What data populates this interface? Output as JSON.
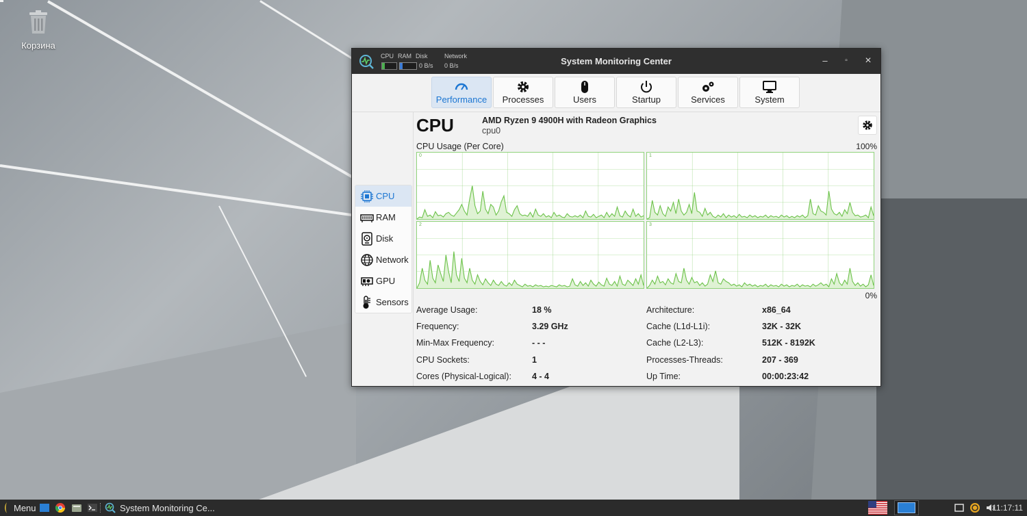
{
  "desktop": {
    "trash_label": "Корзина"
  },
  "window": {
    "title": "System Monitoring Center",
    "mini": {
      "cpu": "CPU",
      "ram": "RAM",
      "disk": "Disk",
      "network": "Network",
      "disk_speed": "0 B/s",
      "net_speed": "0 B/s"
    },
    "controls": {
      "minimize": "–",
      "maximize": "▫",
      "close": "×"
    }
  },
  "tabs": [
    {
      "label": "Performance",
      "icon": "gauge-icon"
    },
    {
      "label": "Processes",
      "icon": "gear-icon"
    },
    {
      "label": "Users",
      "icon": "mouse-icon"
    },
    {
      "label": "Startup",
      "icon": "power-icon"
    },
    {
      "label": "Services",
      "icon": "gears-icon"
    },
    {
      "label": "System",
      "icon": "monitor-icon"
    }
  ],
  "sidebar": [
    {
      "label": "CPU",
      "icon": "chip-icon"
    },
    {
      "label": "RAM",
      "icon": "ram-icon"
    },
    {
      "label": "Disk",
      "icon": "disk-icon"
    },
    {
      "label": "Network",
      "icon": "globe-icon"
    },
    {
      "label": "GPU",
      "icon": "gpu-icon"
    },
    {
      "label": "Sensors",
      "icon": "thermometer-icon"
    }
  ],
  "cpu": {
    "heading": "CPU",
    "model": "AMD Ryzen 9 4900H with Radeon Graphics",
    "id": "cpu0",
    "usage_label": "CPU Usage (Per Core)",
    "max_label": "100%",
    "min_label": "0%",
    "cores": [
      {
        "label": "0",
        "values": [
          0,
          3,
          2,
          14,
          4,
          6,
          2,
          11,
          5,
          6,
          3,
          8,
          10,
          6,
          4,
          9,
          14,
          22,
          12,
          6,
          30,
          50,
          20,
          8,
          12,
          42,
          15,
          8,
          22,
          18,
          6,
          12,
          26,
          35,
          10,
          8,
          4,
          14,
          20,
          8,
          5,
          6,
          4,
          10,
          3,
          15,
          6,
          4,
          8,
          3,
          5,
          2,
          10,
          4,
          6,
          3,
          2,
          8,
          4,
          3,
          5,
          3,
          6,
          2,
          12,
          4,
          3,
          7,
          2,
          4,
          6,
          2,
          10,
          3,
          8,
          4,
          18,
          5,
          3,
          12,
          6,
          3,
          15,
          4,
          8,
          3,
          5
        ]
      },
      {
        "label": "1",
        "values": [
          0,
          2,
          28,
          10,
          6,
          20,
          8,
          4,
          18,
          12,
          25,
          8,
          30,
          12,
          6,
          10,
          22,
          8,
          40,
          12,
          10,
          4,
          16,
          6,
          10,
          4,
          2,
          6,
          3,
          8,
          2,
          6,
          3,
          5,
          2,
          7,
          3,
          4,
          2,
          6,
          3,
          5,
          2,
          4,
          3,
          6,
          2,
          5,
          3,
          4,
          2,
          6,
          3,
          5,
          2,
          4,
          2,
          5,
          3,
          6,
          2,
          5,
          30,
          8,
          6,
          20,
          12,
          10,
          6,
          42,
          15,
          8,
          6,
          10,
          4,
          14,
          8,
          25,
          10,
          5,
          6,
          3,
          4,
          6,
          2,
          18,
          5
        ]
      },
      {
        "label": "2",
        "values": [
          0,
          8,
          30,
          12,
          6,
          42,
          15,
          8,
          35,
          22,
          10,
          50,
          25,
          8,
          55,
          20,
          10,
          45,
          15,
          8,
          30,
          12,
          6,
          20,
          10,
          5,
          14,
          8,
          4,
          12,
          6,
          4,
          10,
          5,
          3,
          8,
          4,
          12,
          6,
          4,
          2,
          6,
          3,
          4,
          2,
          5,
          3,
          4,
          2,
          3,
          2,
          4,
          3,
          2,
          5,
          3,
          4,
          2,
          3,
          14,
          5,
          3,
          10,
          4,
          8,
          3,
          12,
          6,
          3,
          9,
          5,
          3,
          15,
          6,
          4,
          10,
          3,
          18,
          6,
          4,
          12,
          8,
          4,
          14,
          6,
          20,
          4
        ]
      },
      {
        "label": "3",
        "values": [
          0,
          4,
          12,
          6,
          18,
          8,
          10,
          5,
          14,
          8,
          6,
          22,
          10,
          8,
          30,
          12,
          6,
          16,
          8,
          10,
          4,
          8,
          3,
          6,
          20,
          10,
          26,
          8,
          6,
          14,
          10,
          8,
          4,
          6,
          3,
          5,
          2,
          8,
          4,
          6,
          3,
          5,
          2,
          4,
          3,
          6,
          2,
          5,
          3,
          4,
          2,
          6,
          3,
          5,
          2,
          4,
          3,
          6,
          2,
          5,
          3,
          4,
          2,
          6,
          3,
          5,
          8,
          4,
          6,
          2,
          14,
          6,
          22,
          8,
          4,
          12,
          6,
          30,
          10,
          4,
          8,
          3,
          6,
          2,
          5,
          20,
          4
        ]
      }
    ]
  },
  "stats_left": [
    {
      "key": "Average Usage:",
      "value": "18 %"
    },
    {
      "key": "Frequency:",
      "value": "3.29 GHz"
    },
    {
      "key": "Min-Max Frequency:",
      "value": "- - -"
    },
    {
      "key": "CPU Sockets:",
      "value": "1"
    },
    {
      "key": "Cores (Physical-Logical):",
      "value": "4 - 4"
    }
  ],
  "stats_right": [
    {
      "key": "Architecture:",
      "value": "x86_64"
    },
    {
      "key": "Cache (L1d-L1i):",
      "value": "32K - 32K"
    },
    {
      "key": "Cache (L2-L3):",
      "value": "512K - 8192K"
    },
    {
      "key": "Processes-Threads:",
      "value": "207 - 369"
    },
    {
      "key": "Up Time:",
      "value": "00:00:23:42"
    }
  ],
  "taskbar": {
    "menu_label": "Menu",
    "task_label": "System Monitoring Ce...",
    "clock": "11:17:11"
  },
  "colors": {
    "accent": "#1c76d2",
    "graph_line": "#6cc24a",
    "graph_fill": "#dff2d4",
    "grid": "#8fd27a"
  }
}
